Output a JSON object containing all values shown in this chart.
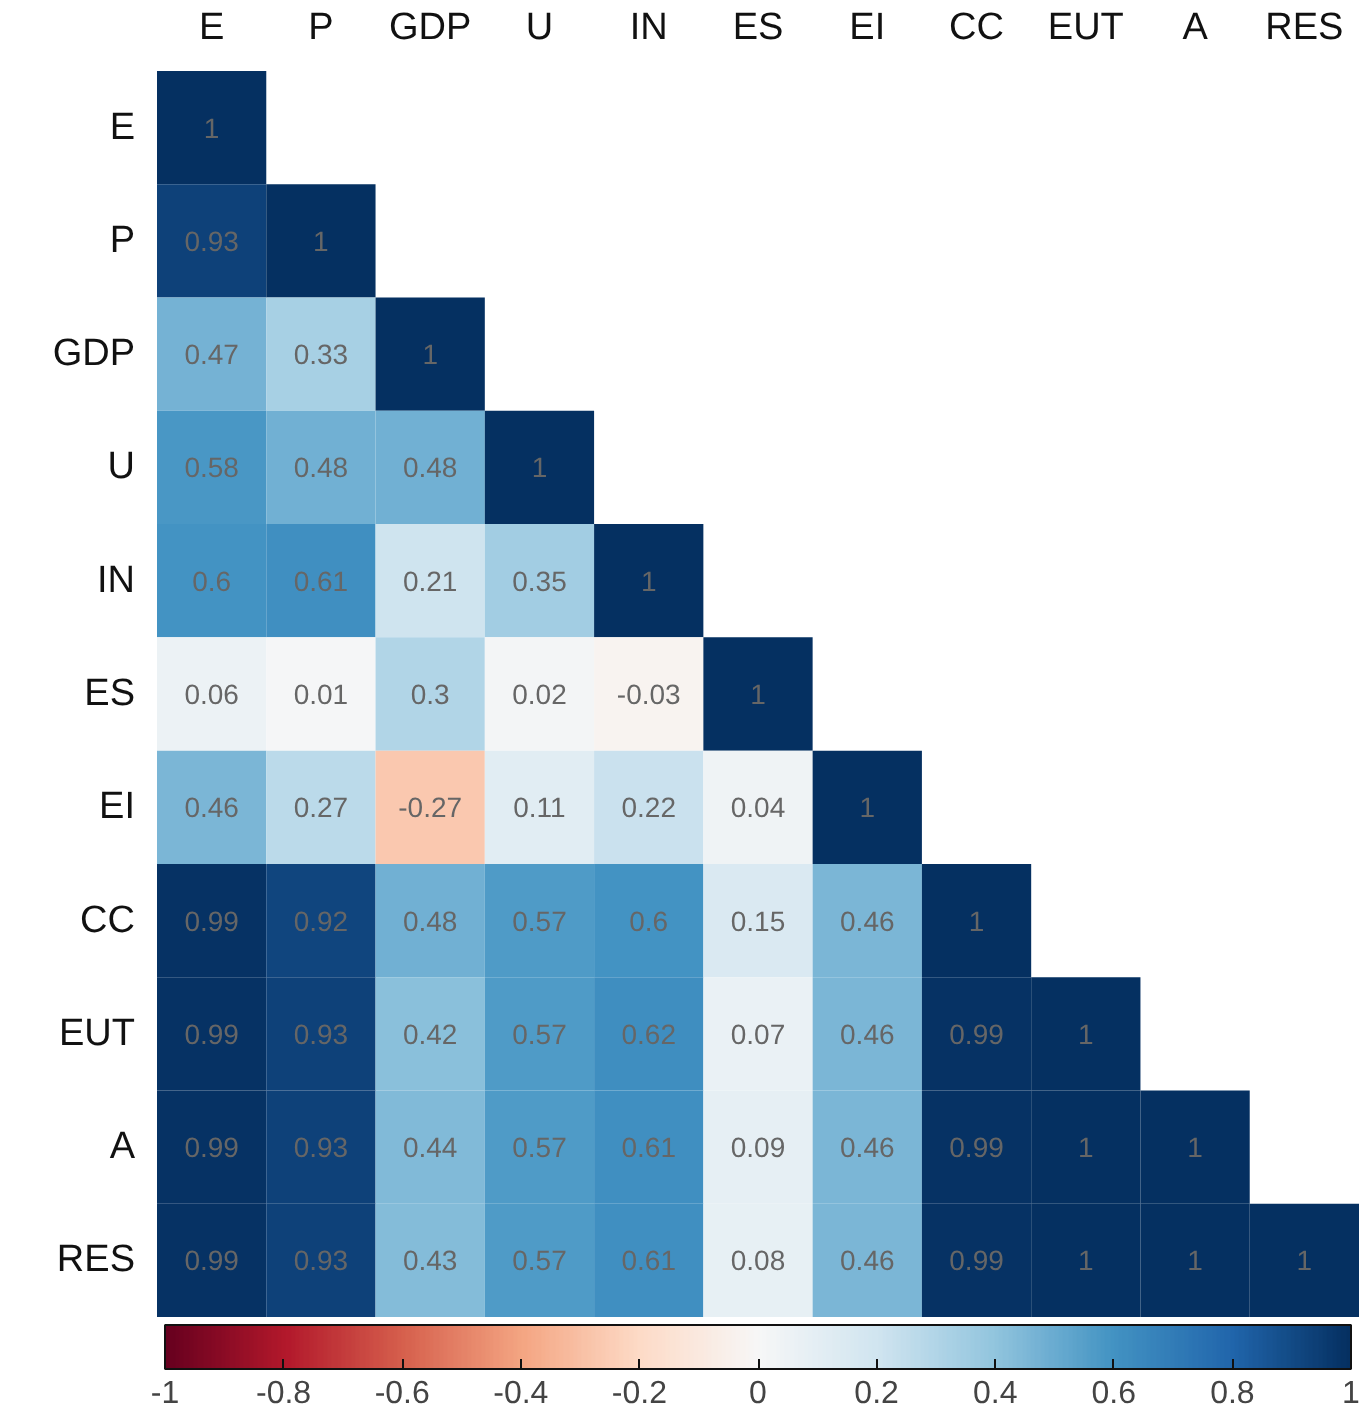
{
  "chart_data": {
    "type": "heatmap",
    "categories": [
      "E",
      "P",
      "GDP",
      "U",
      "IN",
      "ES",
      "EI",
      "CC",
      "EUT",
      "A",
      "RES"
    ],
    "y_categories": [
      "E",
      "P",
      "GDP",
      "U",
      "IN",
      "ES",
      "EI",
      "CC",
      "EUT",
      "A",
      "RES"
    ],
    "cells": [
      [
        1,
        null,
        null,
        null,
        null,
        null,
        null,
        null,
        null,
        null,
        null
      ],
      [
        0.93,
        1,
        null,
        null,
        null,
        null,
        null,
        null,
        null,
        null,
        null
      ],
      [
        0.47,
        0.33,
        1,
        null,
        null,
        null,
        null,
        null,
        null,
        null,
        null
      ],
      [
        0.58,
        0.48,
        0.48,
        1,
        null,
        null,
        null,
        null,
        null,
        null,
        null
      ],
      [
        0.6,
        0.61,
        0.21,
        0.35,
        1,
        null,
        null,
        null,
        null,
        null,
        null
      ],
      [
        0.06,
        0.01,
        0.3,
        0.02,
        -0.03,
        1,
        null,
        null,
        null,
        null,
        null
      ],
      [
        0.46,
        0.27,
        -0.27,
        0.11,
        0.22,
        0.04,
        1,
        null,
        null,
        null,
        null
      ],
      [
        0.99,
        0.92,
        0.48,
        0.57,
        0.6,
        0.15,
        0.46,
        1,
        null,
        null,
        null
      ],
      [
        0.99,
        0.93,
        0.42,
        0.57,
        0.62,
        0.07,
        0.46,
        0.99,
        1,
        null,
        null
      ],
      [
        0.99,
        0.93,
        0.44,
        0.57,
        0.61,
        0.09,
        0.46,
        0.99,
        1,
        1,
        null
      ],
      [
        0.99,
        0.93,
        0.43,
        0.57,
        0.61,
        0.08,
        0.46,
        0.99,
        1,
        1,
        1
      ]
    ],
    "data_labels": true,
    "clim": [
      -1,
      1
    ],
    "cticks": [
      -1,
      -0.8,
      -0.6,
      -0.4,
      -0.2,
      0,
      0.2,
      0.4,
      0.6,
      0.8,
      1
    ],
    "grid": false
  }
}
